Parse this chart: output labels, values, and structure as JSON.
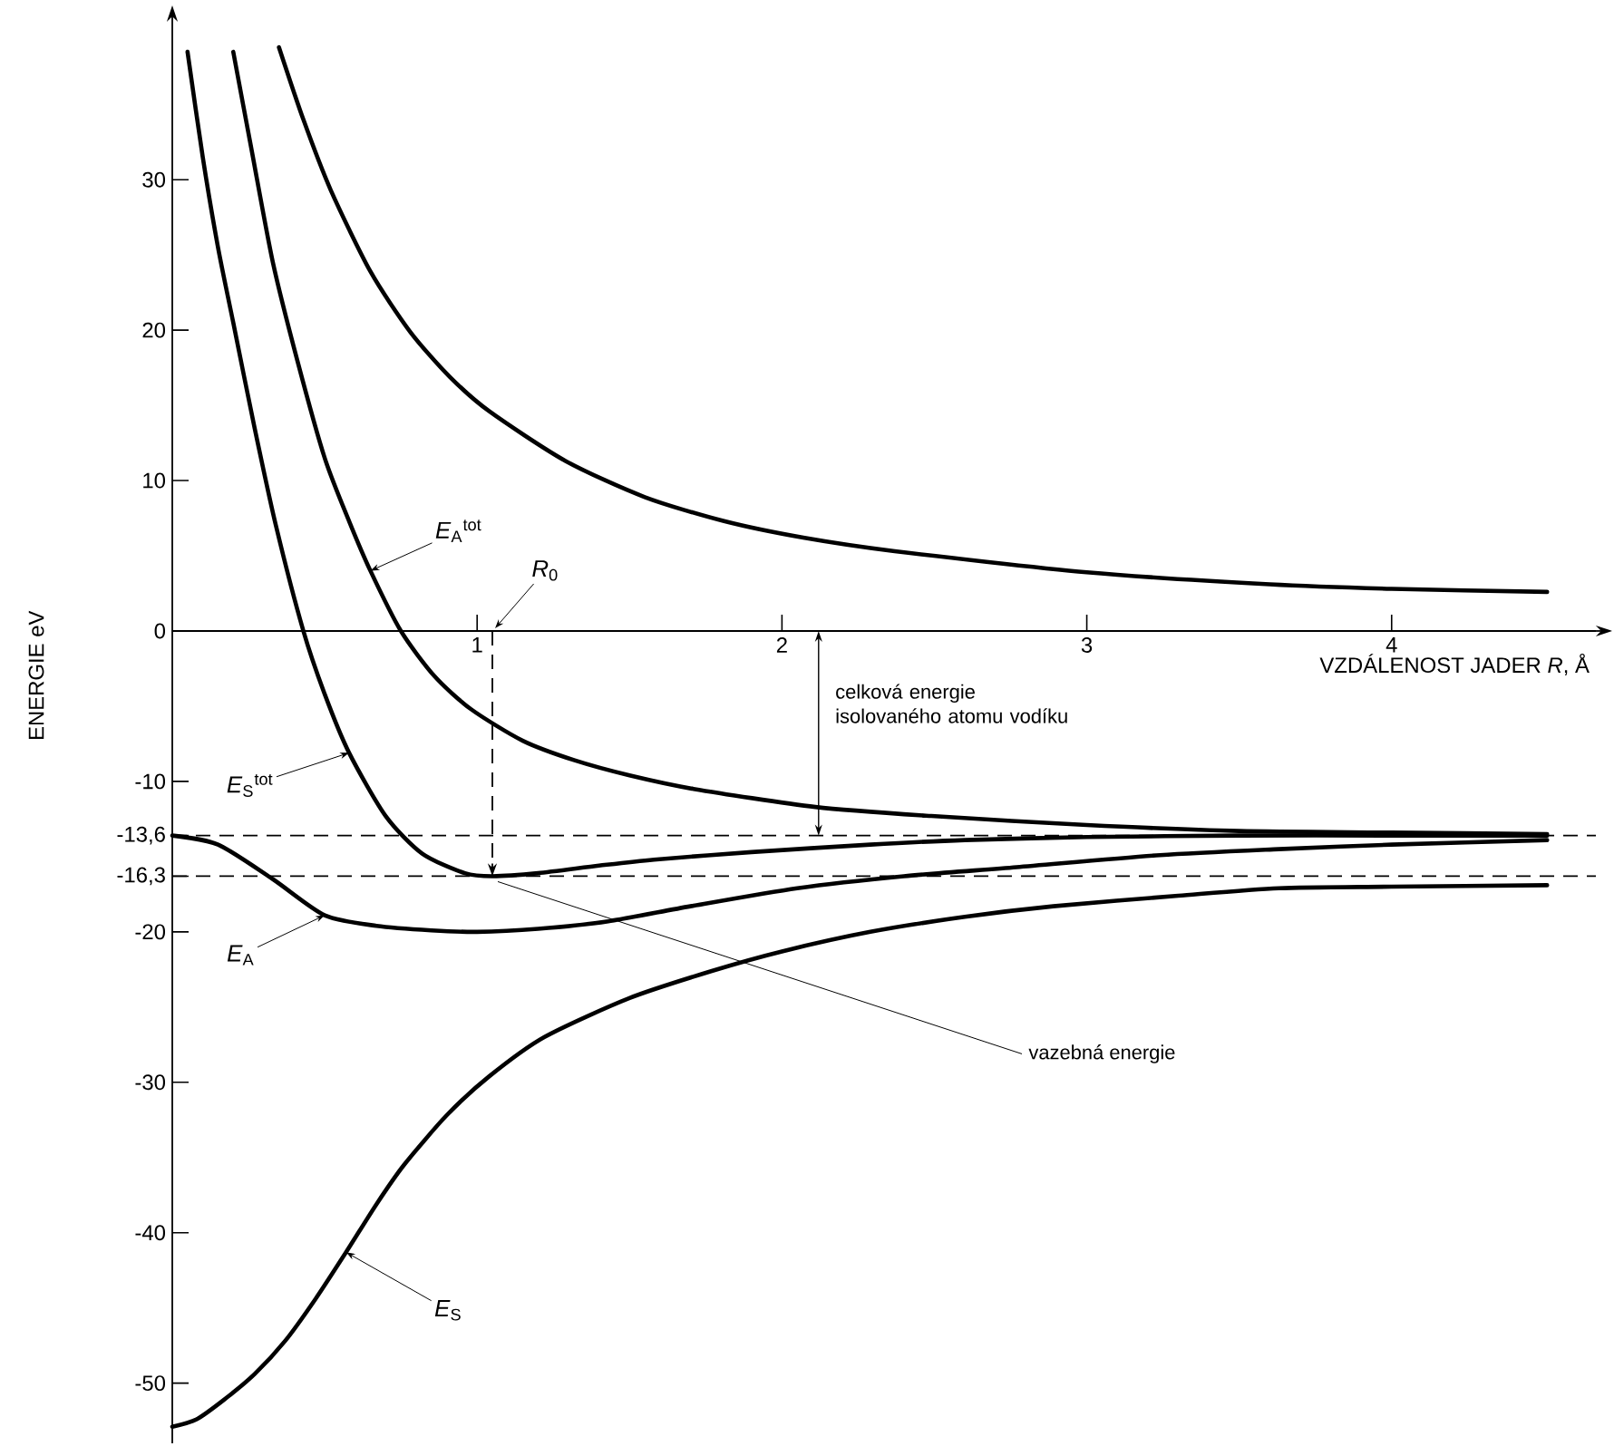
{
  "chart_data": {
    "type": "line",
    "xlabel": "VZDÁLENOST JADER *R*, Å",
    "ylabel": "ENERGIE eV",
    "xlim": [
      0,
      4.67
    ],
    "ylim": [
      -54,
      40.5
    ],
    "xticks": [
      1,
      2,
      3,
      4
    ],
    "yticks": [
      30,
      20,
      10,
      0,
      -10,
      {
        "value": -13.6,
        "label": "-13,6"
      },
      {
        "value": -16.3,
        "label": "-16,3"
      },
      -20,
      -30,
      -40,
      -50
    ],
    "series": [
      {
        "color": "#000000",
        "x": [
          0.35,
          0.43,
          0.52,
          0.65,
          0.78,
          0.91,
          1.04,
          1.29,
          1.55,
          1.81,
          2.07,
          2.37,
          3.0,
          3.6,
          4.0,
          4.51
        ],
        "values": [
          38.8,
          34.0,
          29.3,
          23.9,
          19.9,
          16.9,
          14.6,
          11.3,
          8.9,
          7.3,
          6.2,
          5.3,
          3.9,
          3.1,
          2.8,
          2.6
        ]
      },
      {
        "name": "*E*$_{A}$$^{tot}$",
        "color": "#000000",
        "x": [
          0.2,
          0.26,
          0.33,
          0.41,
          0.5,
          0.58,
          0.65,
          0.75,
          0.86,
          0.98,
          1.15,
          1.32,
          1.5,
          1.71,
          2.11,
          2.49,
          3.0,
          3.5,
          4.0,
          4.51
        ],
        "values": [
          38.5,
          32.0,
          24.5,
          18.0,
          11.5,
          7.3,
          4.0,
          0,
          -3.0,
          -5.2,
          -7.3,
          -8.6,
          -9.6,
          -10.5,
          -11.7,
          -12.3,
          -12.9,
          -13.3,
          -13.4,
          -13.5
        ]
      },
      {
        "name": "*E*$_{S}$$^{tot}$",
        "color": "#000000",
        "x": [
          0.05,
          0.1,
          0.15,
          0.2,
          0.27,
          0.34,
          0.43,
          0.5,
          0.58,
          0.7,
          0.82,
          0.96,
          1.05,
          1.2,
          1.4,
          1.58,
          1.9,
          2.29,
          2.6,
          3.0,
          3.5,
          4.0,
          4.51
        ],
        "values": [
          38.5,
          31.5,
          25.5,
          20.5,
          13.5,
          7.0,
          0,
          -4.2,
          -8.1,
          -12.3,
          -14.8,
          -16.1,
          -16.3,
          -16.1,
          -15.6,
          -15.2,
          -14.7,
          -14.2,
          -13.9,
          -13.7,
          -13.6,
          -13.6,
          -13.6
        ]
      },
      {
        "name": "*E*$_{A}$",
        "color": "#000000",
        "x": [
          0,
          0.15,
          0.33,
          0.5,
          0.67,
          0.85,
          1.0,
          1.2,
          1.43,
          1.7,
          2.05,
          2.4,
          2.77,
          3.24,
          3.63,
          4.0,
          4.51
        ],
        "values": [
          -13.6,
          -14.2,
          -16.5,
          -18.9,
          -19.6,
          -19.9,
          -20.0,
          -19.8,
          -19.3,
          -18.3,
          -17.1,
          -16.3,
          -15.7,
          -14.9,
          -14.5,
          -14.2,
          -13.9
        ]
      },
      {
        "name": "*E*$_{S}$",
        "color": "#000000",
        "x": [
          0,
          0.08,
          0.17,
          0.27,
          0.37,
          0.47,
          0.57,
          0.67,
          0.76,
          0.9,
          1.04,
          1.22,
          1.5,
          1.77,
          2.0,
          2.29,
          2.6,
          2.89,
          3.3,
          3.63,
          4.0,
          4.51
        ],
        "values": [
          -52.9,
          -52.4,
          -51.1,
          -49.4,
          -47.2,
          -44.4,
          -41.3,
          -38.1,
          -35.5,
          -32.2,
          -29.6,
          -27.0,
          -24.4,
          -22.6,
          -21.3,
          -20.0,
          -19.0,
          -18.3,
          -17.6,
          -17.1,
          -17.0,
          -16.9
        ]
      }
    ],
    "ref_lines": [
      {
        "axis": "y",
        "value": -13.6,
        "line_style": "dashed"
      },
      {
        "axis": "y",
        "value": -16.3,
        "line_style": "dashed"
      },
      {
        "axis": "x",
        "value": 1.05,
        "line_style": "dashed"
      }
    ],
    "annotations": [
      "celková energie isolovaného atomu vodíku",
      {
        "text": "vazebná energie",
        "x": 1.05,
        "y": -16.3
      },
      {
        "text": "*R*$_{0}$",
        "x": 1.05,
        "y": 0
      }
    ]
  }
}
